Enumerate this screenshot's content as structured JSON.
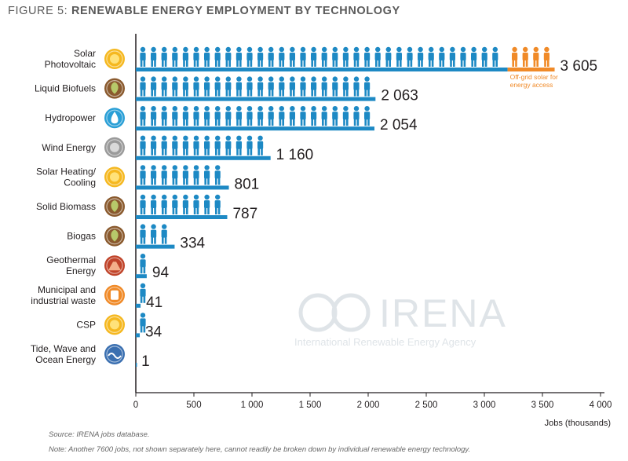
{
  "figure": {
    "label": "FIGURE 5:",
    "title": "RENEWABLE ENERGY EMPLOYMENT BY TECHNOLOGY"
  },
  "chart_data": {
    "type": "bar",
    "orientation": "horizontal",
    "categories": [
      [
        "Solar",
        "Photovoltaic"
      ],
      [
        "Liquid Biofuels"
      ],
      [
        "Hydropower"
      ],
      [
        "Wind Energy"
      ],
      [
        "Solar Heating/",
        "Cooling"
      ],
      [
        "Solid Biomass"
      ],
      [
        "Biogas"
      ],
      [
        "Geothermal",
        "Energy"
      ],
      [
        "Municipal and",
        "industrial waste"
      ],
      [
        "CSP"
      ],
      [
        "Tide, Wave and",
        "Ocean Energy"
      ]
    ],
    "icons": [
      "sun-icon",
      "leaf-icon",
      "water-drop-icon",
      "wind-icon",
      "sun-icon",
      "leaf-icon",
      "leaf-icon",
      "volcano-icon",
      "waste-icon",
      "sun-icon",
      "wave-icon"
    ],
    "icon_colors": [
      "#f5b820",
      "#8a5a2e",
      "#2a9fd6",
      "#9a9a9a",
      "#f5b820",
      "#8a5a2e",
      "#8a5a2e",
      "#c0442a",
      "#f08a28",
      "#f5b820",
      "#3a6fb0"
    ],
    "values": [
      3605,
      2063,
      2054,
      1160,
      801,
      787,
      334,
      94,
      41,
      34,
      1
    ],
    "value_labels": [
      "3 605",
      "2 063",
      "2 054",
      "1 160",
      "801",
      "787",
      "334",
      "94",
      "41",
      "34",
      "1"
    ],
    "stacked_segment": {
      "category_index": 0,
      "grid_value": 3200,
      "label": "Off-grid solar for energy access",
      "color": "#f08a28"
    },
    "bar_color": "#1d89c4",
    "xlabel": "Jobs (thousands)",
    "xlim": [
      0,
      4000
    ],
    "x_ticks": [
      0,
      500,
      1000,
      1500,
      2000,
      2500,
      3000,
      3500,
      4000
    ],
    "x_tick_labels": [
      "0",
      "500",
      "1 000",
      "1 500",
      "2 000",
      "2 500",
      "3 000",
      "3 500",
      "4 000"
    ],
    "grid": false
  },
  "watermark": {
    "name": "IRENA",
    "subtitle": "International Renewable Energy Agency"
  },
  "footer": {
    "source": "Source: IRENA jobs database.",
    "note": "Note: Another 7600 jobs, not shown separately here, cannot readily be broken down by individual renewable energy technology."
  }
}
